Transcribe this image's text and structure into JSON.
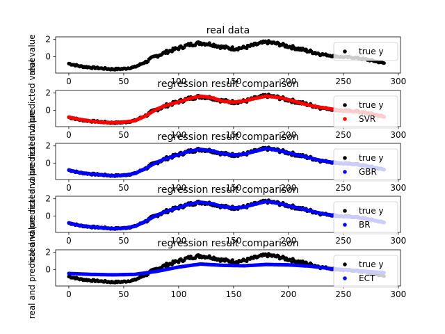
{
  "chart_data": [
    {
      "type": "scatter",
      "title": "real data",
      "ylabel": "real value",
      "xlim": [
        -12,
        302
      ],
      "ylim": [
        -1.9,
        2.3
      ],
      "xticks": [
        "0",
        "50",
        "100",
        "150",
        "200",
        "250",
        "300"
      ],
      "yticks": [
        "-1",
        "0",
        "1",
        "2"
      ],
      "yticks_values": [
        0,
        2
      ],
      "legend_position": "right",
      "series": [
        {
          "name": "true y",
          "color": "#000000",
          "curve": "true",
          "x": [
            0,
            10,
            20,
            30,
            40,
            50,
            60,
            70,
            80,
            90,
            100,
            110,
            120,
            130,
            140,
            150,
            160,
            170,
            180,
            190,
            200,
            210,
            220,
            230,
            240,
            250,
            260,
            270,
            280,
            287
          ],
          "y": [
            -0.8,
            -1.1,
            -1.25,
            -1.35,
            -1.45,
            -1.4,
            -1.2,
            -0.6,
            0.1,
            0.6,
            1.0,
            1.4,
            1.6,
            1.45,
            1.1,
            0.95,
            1.05,
            1.4,
            1.7,
            1.5,
            1.2,
            0.9,
            0.6,
            0.3,
            0.1,
            -0.05,
            -0.1,
            -0.3,
            -0.55,
            -0.75
          ]
        }
      ]
    },
    {
      "type": "scatter",
      "title": "regression result comparison",
      "ylabel": "real and predicted value",
      "xlim": [
        -12,
        302
      ],
      "ylim": [
        -1.9,
        2.3
      ],
      "legend_position": "right",
      "series": [
        {
          "name": "true y",
          "color": "#000000",
          "curve": "true"
        },
        {
          "name": "SVR",
          "color": "#ff0000",
          "curve": "svr"
        }
      ]
    },
    {
      "type": "scatter",
      "title": "regression result comparison",
      "ylabel": "real and predicted value",
      "xlim": [
        -12,
        302
      ],
      "ylim": [
        -1.9,
        2.3
      ],
      "legend_position": "right",
      "series": [
        {
          "name": "true y",
          "color": "#000000",
          "curve": "true"
        },
        {
          "name": "GBR",
          "color": "#0000ff",
          "curve": "fit"
        }
      ]
    },
    {
      "type": "scatter",
      "title": "regression result comparison",
      "ylabel": "real and predicted value",
      "xlim": [
        -12,
        302
      ],
      "ylim": [
        -1.9,
        2.3
      ],
      "legend_position": "right",
      "series": [
        {
          "name": "true y",
          "color": "#000000",
          "curve": "true"
        },
        {
          "name": "BR",
          "color": "#0000ff",
          "curve": "fit"
        }
      ]
    },
    {
      "type": "scatter",
      "title": "regression result comparison",
      "ylabel": "real and predicted value",
      "xlim": [
        -12,
        302
      ],
      "ylim": [
        -1.9,
        2.3
      ],
      "legend_position": "right",
      "series": [
        {
          "name": "true y",
          "color": "#000000",
          "curve": "true"
        },
        {
          "name": "ECT",
          "color": "#0000ff",
          "curve": "ect",
          "x": [
            0,
            20,
            40,
            60,
            80,
            100,
            120,
            140,
            160,
            180,
            200,
            220,
            240,
            260,
            287
          ],
          "y": [
            -0.45,
            -0.55,
            -0.6,
            -0.55,
            -0.2,
            0.3,
            0.65,
            0.5,
            0.45,
            0.6,
            0.55,
            0.4,
            0.1,
            -0.1,
            -0.35
          ]
        }
      ]
    }
  ]
}
